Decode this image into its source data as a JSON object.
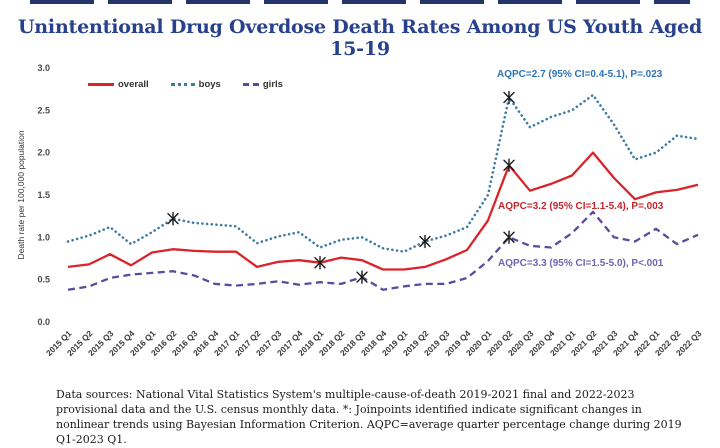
{
  "page": {
    "title": "Unintentional Drug Overdose Death Rates Among US Youth Aged 15-19",
    "footnote": "Data sources:  National Vital Statistics System's multiple-cause-of-death 2019-2021 final and 2022-2023 provisional data and the U.S. census monthly data.  *: Joinpoints identified indicate significant changes in nonlinear trends using Bayesian Information Criterion. AQPC=average quarter percentage change during 2019 Q1-2023 Q1."
  },
  "colors": {
    "title_navy": "#27418C",
    "overall_red": "#D9242B",
    "boys_blue": "#3E7CA6",
    "girls_purple": "#5B4B9E",
    "annotation_blue": "#2E74B5",
    "annotation_red": "#C0272D",
    "annotation_purple": "#7263AE",
    "joinpoint_marker": "#1a1a1a"
  },
  "chart_data": {
    "type": "line",
    "title": "Unintentional Drug Overdose Death Rates Among US Youth Aged 15-19",
    "xlabel": "",
    "ylabel": "Death rate per 100,000 population",
    "ylim": [
      0.0,
      3.0
    ],
    "yticks": [
      "0.0",
      "0.5",
      "1.0",
      "1.5",
      "2.0",
      "2.5",
      "3.0"
    ],
    "grid": false,
    "legend_position": "top-left",
    "categories": [
      "2015 Q1",
      "2015 Q2",
      "2015 Q3",
      "2015 Q4",
      "2016 Q1",
      "2016 Q2",
      "2016 Q3",
      "2016 Q4",
      "2017 Q1",
      "2017 Q2",
      "2017 Q3",
      "2017 Q4",
      "2018 Q1",
      "2018 Q2",
      "2018 Q3",
      "2018 Q4",
      "2019 Q1",
      "2019 Q2",
      "2019 Q3",
      "2019 Q4",
      "2020 Q1",
      "2020 Q2",
      "2020 Q3",
      "2020 Q4",
      "2021 Q1",
      "2021 Q2",
      "2021 Q3",
      "2021 Q4",
      "2022 Q1",
      "2022 Q2",
      "2022 Q3"
    ],
    "series": [
      {
        "name": "overall",
        "color": "#D9242B",
        "style": "solid",
        "values": [
          0.65,
          0.68,
          0.8,
          0.67,
          0.82,
          0.86,
          0.84,
          0.83,
          0.83,
          0.65,
          0.71,
          0.73,
          0.7,
          0.76,
          0.73,
          0.62,
          0.62,
          0.65,
          0.74,
          0.85,
          1.2,
          1.85,
          1.55,
          1.63,
          1.73,
          2.0,
          1.7,
          1.45,
          1.53,
          1.56,
          1.62
        ],
        "joinpoints": [
          12,
          21
        ]
      },
      {
        "name": "boys",
        "color": "#3E7CA6",
        "style": "dotted",
        "values": [
          0.95,
          1.02,
          1.12,
          0.92,
          1.06,
          1.22,
          1.17,
          1.15,
          1.13,
          0.93,
          1.01,
          1.06,
          0.88,
          0.97,
          1.0,
          0.87,
          0.83,
          0.95,
          1.02,
          1.12,
          1.5,
          2.65,
          2.3,
          2.42,
          2.5,
          2.68,
          2.33,
          1.92,
          2.0,
          2.2,
          2.16
        ],
        "joinpoints": [
          5,
          17,
          21
        ]
      },
      {
        "name": "girls",
        "color": "#5B4B9E",
        "style": "dashed",
        "values": [
          0.38,
          0.42,
          0.52,
          0.56,
          0.58,
          0.6,
          0.55,
          0.45,
          0.43,
          0.45,
          0.48,
          0.44,
          0.47,
          0.45,
          0.53,
          0.38,
          0.42,
          0.45,
          0.45,
          0.52,
          0.72,
          1.0,
          0.9,
          0.88,
          1.05,
          1.3,
          1.0,
          0.95,
          1.1,
          0.92,
          1.03
        ],
        "joinpoints": [
          14,
          21
        ]
      }
    ],
    "annotations": {
      "boys": "AQPC=2.7 (95% CI=0.4-5.1), P=.023",
      "overall": "AQPC=3.2 (95% CI=1.1-5.4), P=.003",
      "girls": "AQPC=3.3 (95% CI=1.5-5.0), P<.001"
    }
  }
}
